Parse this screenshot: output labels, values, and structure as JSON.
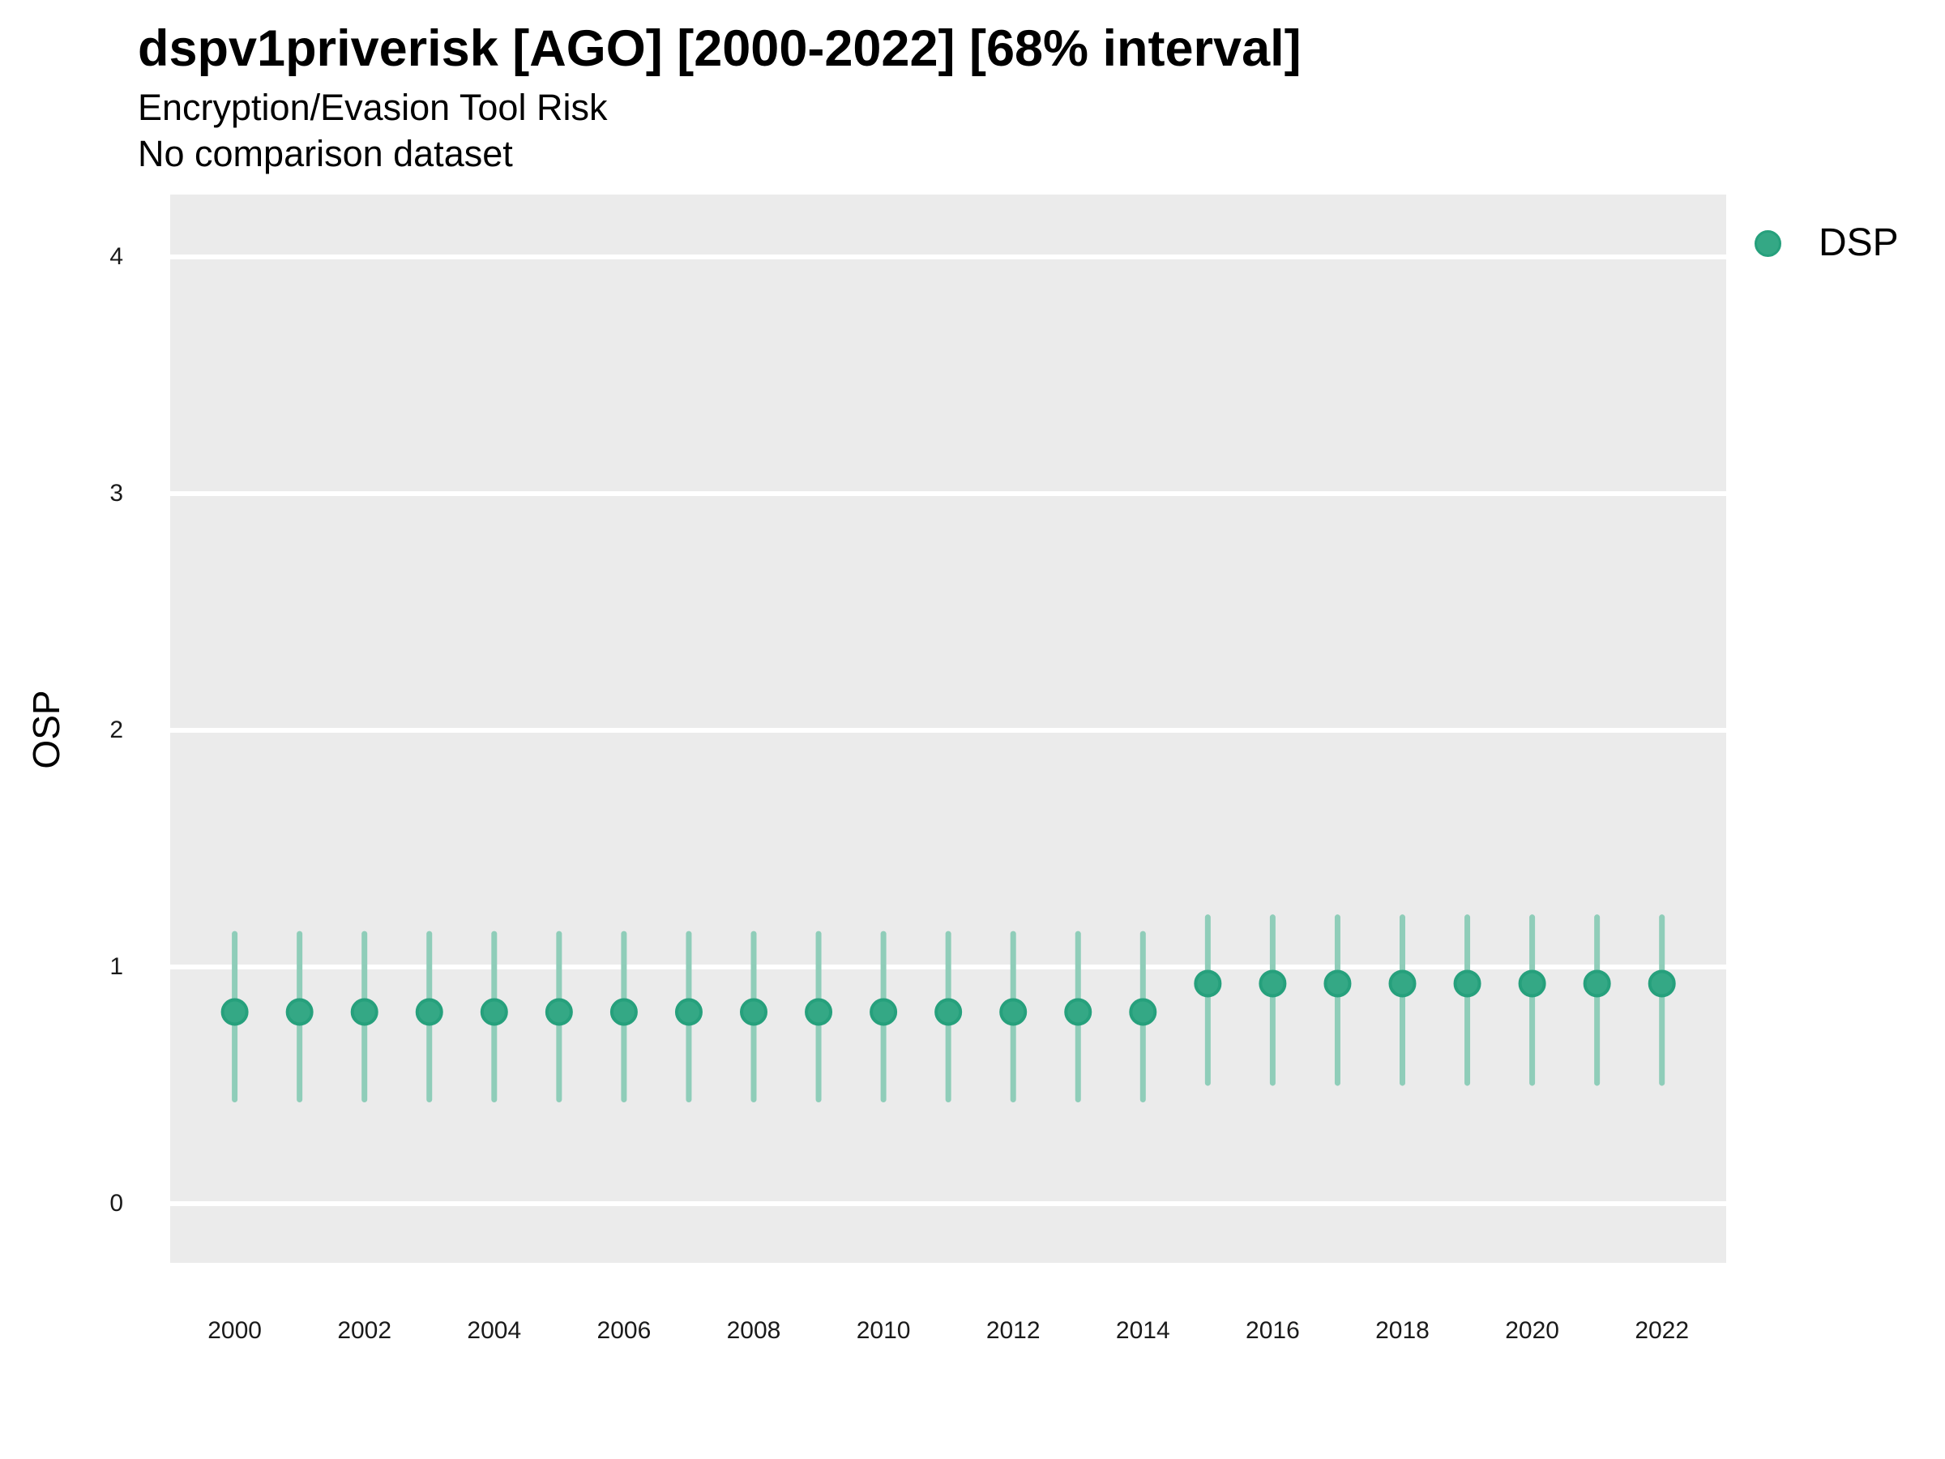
{
  "title": "dspv1priverisk [AGO] [2000-2022] [68% interval]",
  "subtitle": "Encryption/Evasion Tool Risk",
  "note": "No comparison dataset",
  "axes": {
    "y_label": "OSP",
    "y_ticks": [
      "0",
      "1",
      "2",
      "3",
      "4"
    ],
    "x_ticks": [
      "2000",
      "2002",
      "2004",
      "2006",
      "2008",
      "2010",
      "2012",
      "2014",
      "2016",
      "2018",
      "2020",
      "2022"
    ]
  },
  "legend": {
    "position": "right-top",
    "items": [
      {
        "label": "DSP",
        "color": "#34A885"
      }
    ]
  },
  "colors": {
    "panel_background": "#EBEBEB",
    "gridline": "#FFFFFF",
    "point_fill": "#34A885",
    "point_stroke": "#26A07C",
    "interval_line": "#8FCDB9"
  },
  "chart_data": {
    "type": "scatter",
    "mark": "pointrange",
    "title": "dspv1priverisk [AGO] [2000-2022] [68% interval]",
    "subtitle": "Encryption/Evasion Tool Risk",
    "note": "No comparison dataset",
    "xlabel": "",
    "ylabel": "OSP",
    "xlim": [
      1999,
      2023
    ],
    "ylim": [
      -0.25,
      4.26
    ],
    "y_tick_values": [
      0,
      1,
      2,
      3,
      4
    ],
    "x_tick_values": [
      2000,
      2002,
      2004,
      2006,
      2008,
      2010,
      2012,
      2014,
      2016,
      2018,
      2020,
      2022
    ],
    "grid": "horizontal major gridlines, white on gray panel",
    "legend_position": "right-top",
    "interval_level": "68%",
    "series": [
      {
        "name": "DSP",
        "color": "#34A885",
        "interval_color": "#8FCDB9",
        "x": [
          2000,
          2001,
          2002,
          2003,
          2004,
          2005,
          2006,
          2007,
          2008,
          2009,
          2010,
          2011,
          2012,
          2013,
          2014,
          2015,
          2016,
          2017,
          2018,
          2019,
          2020,
          2021,
          2022
        ],
        "estimate": [
          0.81,
          0.81,
          0.81,
          0.81,
          0.81,
          0.81,
          0.81,
          0.81,
          0.81,
          0.81,
          0.81,
          0.81,
          0.81,
          0.81,
          0.81,
          0.93,
          0.93,
          0.93,
          0.93,
          0.93,
          0.93,
          0.93,
          0.93
        ],
        "lower": [
          0.44,
          0.44,
          0.44,
          0.44,
          0.44,
          0.44,
          0.44,
          0.44,
          0.44,
          0.44,
          0.44,
          0.44,
          0.44,
          0.44,
          0.44,
          0.51,
          0.51,
          0.51,
          0.51,
          0.51,
          0.51,
          0.51,
          0.51
        ],
        "upper": [
          1.14,
          1.14,
          1.14,
          1.14,
          1.14,
          1.14,
          1.14,
          1.14,
          1.14,
          1.14,
          1.14,
          1.14,
          1.14,
          1.14,
          1.14,
          1.21,
          1.21,
          1.21,
          1.21,
          1.21,
          1.21,
          1.21,
          1.21
        ]
      }
    ]
  }
}
